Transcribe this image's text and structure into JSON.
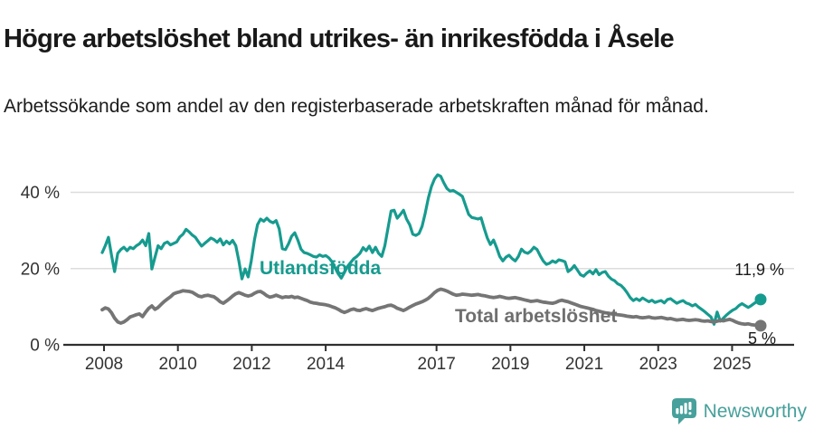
{
  "header": {
    "title": "Högre arbetslöshet bland utrikes- än inrikesfödda i Åsele",
    "subtitle": "Arbetssökande som andel av den registerbaserade arbetskraften månad för månad."
  },
  "footer": {
    "brand": "Newsworthy"
  },
  "colors": {
    "accent_teal": "#169B8F",
    "series_gray": "#757575",
    "logo_teal": "#47A09B",
    "gridline": "#DCDCDC",
    "axis": "#2F2F2F"
  },
  "chart_data": {
    "type": "line",
    "unit": "%",
    "frequency": "monthly",
    "period_start": "2008-01",
    "period_end": "2025-09",
    "grid": "horizontal",
    "ylim": [
      0,
      46
    ],
    "x_tick_years": [
      2008,
      2010,
      2012,
      2014,
      2017,
      2019,
      2021,
      2023,
      2025
    ],
    "y_ticks": [
      {
        "value": 0,
        "label": "0 %"
      },
      {
        "value": 20,
        "label": "20 %"
      },
      {
        "value": 40,
        "label": "40 %"
      }
    ],
    "series": [
      {
        "name": "Utlandsfödda",
        "color": "#169B8F",
        "stroke_width": 3.2,
        "end_value": 11.9,
        "end_label": "11,9 %",
        "values": [
          24.2,
          26.0,
          28.2,
          23.5,
          19.2,
          24.0,
          25.0,
          25.6,
          24.7,
          25.6,
          25.2,
          26.0,
          26.5,
          27.5,
          26.0,
          29.2,
          19.9,
          23.0,
          26.0,
          25.2,
          26.6,
          27.0,
          26.2,
          26.6,
          27.0,
          28.3,
          29.0,
          30.3,
          29.6,
          28.8,
          28.2,
          27.0,
          25.9,
          26.6,
          27.3,
          28.0,
          27.6,
          26.9,
          27.8,
          26.2,
          27.2,
          26.5,
          27.4,
          26.0,
          22.0,
          17.3,
          19.9,
          17.8,
          22.0,
          27.5,
          31.5,
          33.0,
          32.4,
          33.2,
          32.4,
          32.0,
          32.6,
          30.4,
          25.2,
          25.0,
          26.5,
          28.5,
          29.4,
          27.5,
          25.1,
          24.2,
          24.0,
          23.6,
          23.2,
          23.0,
          23.6,
          23.2,
          23.4,
          22.8,
          21.8,
          20.2,
          18.6,
          17.5,
          19.0,
          20.6,
          21.6,
          22.6,
          23.2,
          24.0,
          25.5,
          24.7,
          25.9,
          24.2,
          25.6,
          24.0,
          23.2,
          26.0,
          30.5,
          35.1,
          35.3,
          33.2,
          34.2,
          35.3,
          33.0,
          31.5,
          29.0,
          28.7,
          29.2,
          31.1,
          34.5,
          38.5,
          41.5,
          43.5,
          44.6,
          44.2,
          42.5,
          41.0,
          40.3,
          40.5,
          40.0,
          39.5,
          38.9,
          36.5,
          34.2,
          33.4,
          33.2,
          33.0,
          33.3,
          30.5,
          28.0,
          26.3,
          27.5,
          25.5,
          23.2,
          22.0,
          23.0,
          23.5,
          22.6,
          22.0,
          23.2,
          25.1,
          24.3,
          24.0,
          24.6,
          25.6,
          25.0,
          23.4,
          22.0,
          21.1,
          21.4,
          22.0,
          21.6,
          22.3,
          22.1,
          21.8,
          19.2,
          19.8,
          20.8,
          19.6,
          18.4,
          18.0,
          18.8,
          19.4,
          18.6,
          19.7,
          18.4,
          19.0,
          19.2,
          18.0,
          17.2,
          16.8,
          16.0,
          15.6,
          14.8,
          13.7,
          12.4,
          11.6,
          12.1,
          11.6,
          12.3,
          11.8,
          11.3,
          11.7,
          11.1,
          11.4,
          11.6,
          11.0,
          11.9,
          12.1,
          11.5,
          10.9,
          11.3,
          11.6,
          11.0,
          10.7,
          10.2,
          10.6,
          9.9,
          9.3,
          8.7,
          8.0,
          7.3,
          5.4,
          8.6,
          6.2,
          7.0,
          7.8,
          8.5,
          9.1,
          9.5,
          10.3,
          10.8,
          10.3,
          9.8,
          10.3,
          10.9,
          11.5,
          11.9
        ]
      },
      {
        "name": "Total arbetslöshet",
        "color": "#757575",
        "stroke_width": 3.8,
        "end_value": 5,
        "end_label": "5 %",
        "values": [
          9.2,
          9.7,
          9.4,
          8.4,
          7.0,
          6.0,
          5.7,
          6.0,
          6.6,
          7.3,
          7.6,
          7.9,
          8.1,
          7.4,
          8.6,
          9.6,
          10.2,
          9.3,
          9.8,
          10.6,
          11.4,
          12.0,
          12.6,
          13.4,
          13.7,
          13.9,
          14.2,
          14.1,
          14.0,
          13.8,
          13.3,
          12.8,
          12.6,
          12.9,
          13.0,
          12.8,
          12.6,
          12.0,
          11.3,
          10.9,
          11.5,
          12.1,
          12.8,
          13.4,
          13.7,
          13.4,
          13.0,
          12.8,
          13.0,
          13.5,
          13.9,
          14.0,
          13.5,
          12.9,
          12.5,
          12.7,
          13.0,
          12.7,
          12.4,
          12.6,
          12.5,
          12.7,
          12.4,
          12.5,
          12.2,
          11.9,
          11.6,
          11.2,
          11.0,
          10.9,
          10.7,
          10.6,
          10.5,
          10.3,
          10.0,
          9.7,
          9.3,
          8.8,
          8.5,
          8.8,
          9.2,
          9.4,
          9.1,
          9.0,
          9.3,
          9.5,
          9.2,
          9.0,
          9.3,
          9.6,
          9.8,
          10.0,
          10.3,
          10.4,
          10.1,
          9.6,
          9.3,
          9.0,
          9.4,
          9.9,
          10.3,
          10.7,
          11.0,
          11.3,
          11.7,
          12.2,
          12.9,
          13.7,
          14.3,
          14.6,
          14.4,
          14.1,
          13.7,
          13.3,
          13.0,
          13.1,
          13.3,
          13.2,
          13.1,
          13.0,
          13.1,
          13.2,
          13.0,
          12.9,
          12.7,
          12.5,
          12.4,
          12.5,
          12.7,
          12.5,
          12.3,
          12.2,
          12.3,
          12.4,
          12.2,
          12.0,
          11.8,
          11.6,
          11.4,
          11.5,
          11.6,
          11.4,
          11.2,
          11.1,
          11.0,
          10.9,
          11.1,
          11.5,
          11.7,
          11.5,
          11.3,
          11.0,
          10.7,
          10.4,
          10.1,
          9.9,
          9.7,
          9.5,
          9.3,
          9.0,
          8.8,
          8.6,
          8.4,
          8.3,
          8.1,
          8.0,
          7.9,
          7.8,
          7.7,
          7.5,
          7.4,
          7.3,
          7.4,
          7.2,
          7.1,
          7.2,
          7.3,
          7.1,
          7.0,
          7.1,
          7.2,
          7.0,
          6.8,
          6.9,
          6.7,
          6.5,
          6.6,
          6.7,
          6.5,
          6.4,
          6.5,
          6.6,
          6.5,
          6.3,
          6.2,
          6.3,
          6.1,
          6.0,
          6.2,
          6.4,
          6.3,
          6.5,
          6.7,
          6.4,
          6.0,
          5.7,
          5.5,
          5.4,
          5.5,
          5.3,
          5.2,
          5.1,
          5.0
        ]
      }
    ]
  }
}
